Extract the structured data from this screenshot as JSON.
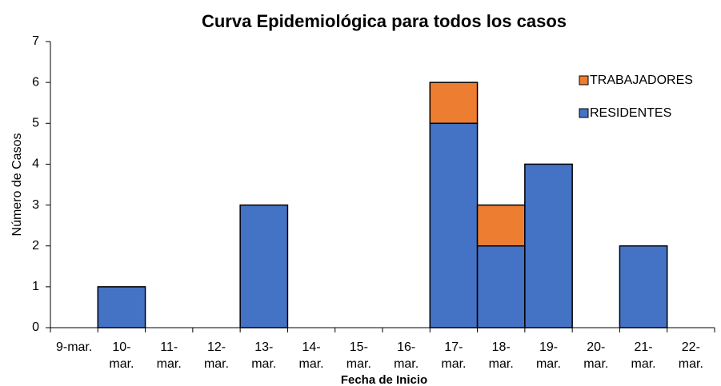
{
  "chart_data": {
    "type": "stacked_bar",
    "title": "Curva Epidemiológica para todos los casos",
    "x_label": "Fecha de Inicio",
    "y_label": "Número de Casos",
    "categories": [
      "9-mar.",
      "10-mar.",
      "11-mar.",
      "12-mar.",
      "13-mar.",
      "14-mar.",
      "15-mar.",
      "16-mar.",
      "17-mar.",
      "18-mar.",
      "19-mar.",
      "20-mar.",
      "21-mar.",
      "22-mar."
    ],
    "series": [
      {
        "name": "RESIDENTES",
        "color": "#4472c4",
        "values": [
          0,
          1,
          0,
          0,
          3,
          0,
          0,
          0,
          5,
          2,
          4,
          0,
          2,
          0
        ]
      },
      {
        "name": "TRABAJADORES",
        "color": "#ed7d31",
        "values": [
          0,
          0,
          0,
          0,
          0,
          0,
          0,
          0,
          1,
          1,
          0,
          0,
          0,
          0
        ]
      }
    ],
    "ylim": [
      0,
      7
    ],
    "yticks": [
      0,
      1,
      2,
      3,
      4,
      5,
      6,
      7
    ],
    "grid": false,
    "legend": "upper right"
  }
}
